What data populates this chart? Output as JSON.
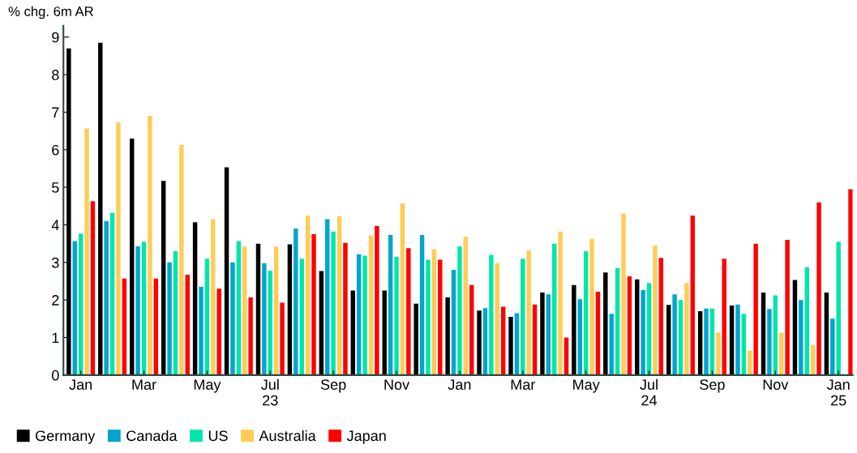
{
  "chart_data": {
    "type": "bar",
    "ylabel": "% chg. 6m AR",
    "categories": [
      "Jan",
      null,
      "Mar",
      null,
      "May",
      null,
      "Jul\n23",
      null,
      "Sep",
      null,
      "Nov",
      null,
      "Jan",
      null,
      "Mar",
      null,
      "May",
      null,
      "Jul\n24",
      null,
      "Sep",
      null,
      "Nov",
      null,
      "Jan\n25"
    ],
    "series": [
      {
        "name": "Germany",
        "color": "#000000",
        "values": [
          8.7,
          8.85,
          6.3,
          5.17,
          4.07,
          5.53,
          3.5,
          3.48,
          2.77,
          2.25,
          2.25,
          1.9,
          2.07,
          1.72,
          1.55,
          2.2,
          2.4,
          2.73,
          2.55,
          1.87,
          1.7,
          1.85,
          2.2,
          2.53,
          2.2
        ]
      },
      {
        "name": "Canada",
        "color": "#00a6cc",
        "values": [
          3.57,
          4.1,
          3.43,
          3.0,
          2.35,
          3.0,
          2.98,
          3.9,
          4.15,
          3.22,
          3.73,
          3.73,
          2.8,
          1.78,
          1.65,
          2.15,
          2.02,
          1.63,
          2.27,
          2.15,
          1.77,
          1.88,
          1.76,
          2.0,
          1.5
        ]
      },
      {
        "name": "US",
        "color": "#00e6aa",
        "values": [
          3.77,
          4.32,
          3.55,
          3.3,
          3.1,
          3.57,
          2.78,
          3.1,
          3.82,
          3.18,
          3.15,
          3.07,
          3.42,
          3.2,
          3.1,
          3.5,
          3.3,
          2.85,
          2.45,
          2.0,
          1.77,
          1.63,
          2.12,
          2.87,
          3.55
        ]
      },
      {
        "name": "Australia",
        "color": "#ffcc55",
        "values": [
          6.57,
          6.73,
          6.9,
          6.13,
          4.15,
          3.42,
          3.42,
          4.25,
          4.23,
          3.72,
          4.57,
          3.35,
          3.68,
          2.98,
          3.32,
          3.82,
          3.63,
          4.3,
          3.45,
          2.45,
          1.13,
          0.65,
          1.13,
          0.8,
          null
        ]
      },
      {
        "name": "Japan",
        "color": "#ff0000",
        "values": [
          4.63,
          2.57,
          2.57,
          2.67,
          2.3,
          2.07,
          1.93,
          3.75,
          3.52,
          3.97,
          3.38,
          3.07,
          2.4,
          1.82,
          1.88,
          1.0,
          2.22,
          2.63,
          3.12,
          4.25,
          3.1,
          3.5,
          3.6,
          4.6,
          4.95
        ]
      }
    ],
    "ylim": [
      0,
      9.3
    ],
    "yticks": [
      0,
      1,
      2,
      3,
      4,
      5,
      6,
      7,
      8,
      9
    ],
    "legend": "bottom"
  }
}
